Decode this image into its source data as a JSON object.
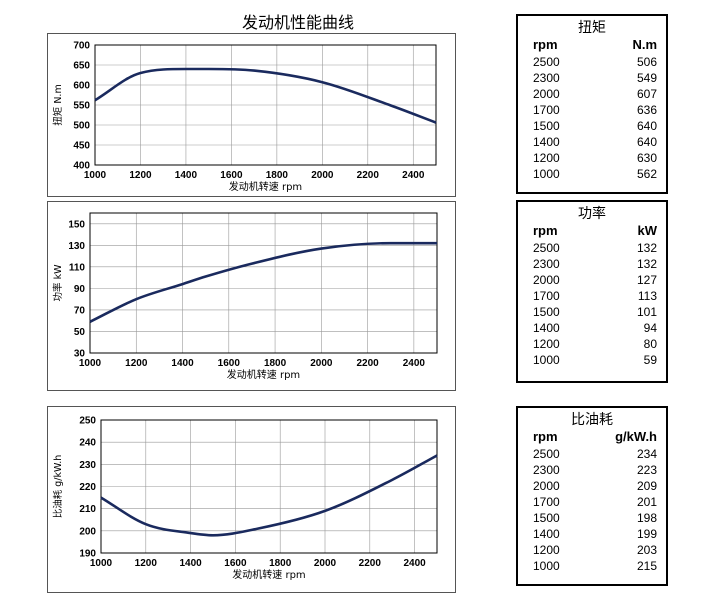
{
  "page_title": "发动机性能曲线",
  "colors": {
    "curve": "#1a2a5e",
    "grid": "#999999",
    "frame": "#000000"
  },
  "chart_data": [
    {
      "type": "line",
      "title": "",
      "xlabel": "发动机转速 rpm",
      "ylabel": "扭矩 N.m",
      "xlim": [
        1000,
        2500
      ],
      "ylim": [
        400,
        700
      ],
      "x_ticks": [
        1000,
        1200,
        1400,
        1600,
        1800,
        2000,
        2200,
        2400
      ],
      "y_ticks": [
        400,
        450,
        500,
        550,
        600,
        650,
        700
      ],
      "grid": true,
      "x": [
        1000,
        1200,
        1400,
        1500,
        1700,
        2000,
        2300,
        2500
      ],
      "values": [
        562,
        630,
        640,
        640,
        636,
        607,
        549,
        506
      ]
    },
    {
      "type": "line",
      "title": "",
      "xlabel": "发动机转速 rpm",
      "ylabel": "功率 kW",
      "xlim": [
        1000,
        2500
      ],
      "ylim": [
        30,
        160
      ],
      "x_ticks": [
        1000,
        1200,
        1400,
        1600,
        1800,
        2000,
        2200,
        2400
      ],
      "y_ticks": [
        30,
        50,
        70,
        90,
        110,
        130,
        150
      ],
      "grid": true,
      "x": [
        1000,
        1200,
        1400,
        1500,
        1700,
        2000,
        2300,
        2500
      ],
      "values": [
        59,
        80,
        94,
        101,
        113,
        127,
        132,
        132
      ]
    },
    {
      "type": "line",
      "title": "",
      "xlabel": "发动机转速 rpm",
      "ylabel": "比油耗 g/kW.h",
      "xlim": [
        1000,
        2500
      ],
      "ylim": [
        190,
        250
      ],
      "x_ticks": [
        1000,
        1200,
        1400,
        1600,
        1800,
        2000,
        2200,
        2400
      ],
      "y_ticks": [
        190,
        200,
        210,
        220,
        230,
        240,
        250
      ],
      "grid": true,
      "x": [
        1000,
        1200,
        1400,
        1500,
        1700,
        2000,
        2300,
        2500
      ],
      "values": [
        215,
        203,
        199,
        198,
        201,
        209,
        223,
        234
      ]
    }
  ],
  "tables": [
    {
      "title": "扭矩",
      "col1": "rpm",
      "col2": "N.m",
      "rows": [
        [
          "2500",
          "506"
        ],
        [
          "2300",
          "549"
        ],
        [
          "2000",
          "607"
        ],
        [
          "1700",
          "636"
        ],
        [
          "1500",
          "640"
        ],
        [
          "1400",
          "640"
        ],
        [
          "1200",
          "630"
        ],
        [
          "1000",
          "562"
        ]
      ]
    },
    {
      "title": "功率",
      "col1": "rpm",
      "col2": "kW",
      "rows": [
        [
          "2500",
          "132"
        ],
        [
          "2300",
          "132"
        ],
        [
          "2000",
          "127"
        ],
        [
          "1700",
          "113"
        ],
        [
          "1500",
          "101"
        ],
        [
          "1400",
          "94"
        ],
        [
          "1200",
          "80"
        ],
        [
          "1000",
          "59"
        ]
      ]
    },
    {
      "title": "比油耗",
      "col1": "rpm",
      "col2": "g/kW.h",
      "rows": [
        [
          "2500",
          "234"
        ],
        [
          "2300",
          "223"
        ],
        [
          "2000",
          "209"
        ],
        [
          "1700",
          "201"
        ],
        [
          "1500",
          "198"
        ],
        [
          "1400",
          "199"
        ],
        [
          "1200",
          "203"
        ],
        [
          "1000",
          "215"
        ]
      ]
    }
  ]
}
